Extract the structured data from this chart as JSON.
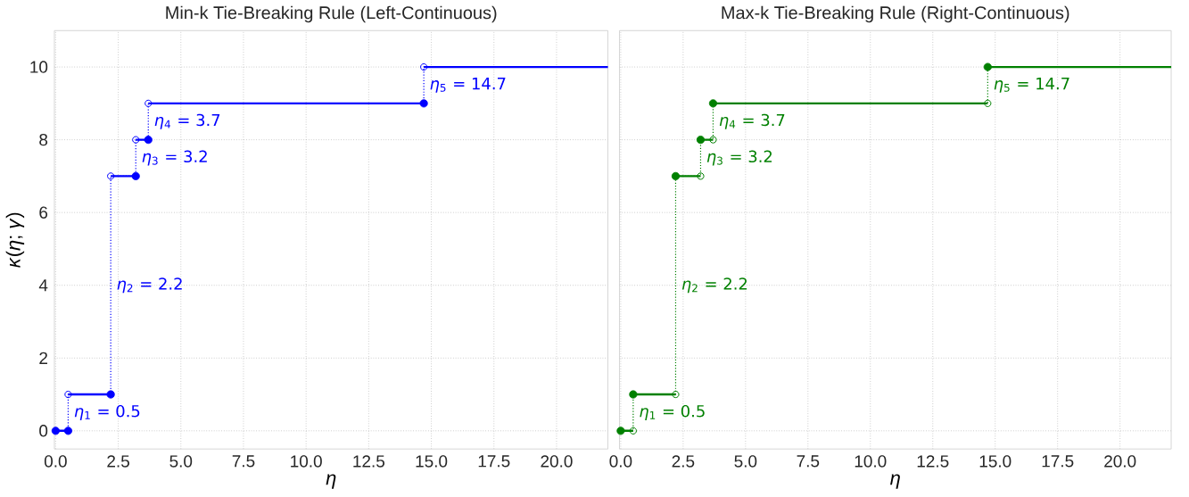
{
  "chart_data": [
    {
      "type": "step",
      "title": "Min-k Tie-Breaking Rule (Left-Continuous)",
      "xlabel": "*η*",
      "ylabel": "*κ*(*η*; *γ*)",
      "series": [
        {
          "type": "scatter",
          "marker": "circle",
          "color": "#0000ff",
          "x": [
            0,
            0.5,
            2.2,
            3.2,
            3.7,
            14.7
          ],
          "values": [
            0,
            0,
            1,
            7,
            8,
            9
          ]
        },
        {
          "color": "#0000ff",
          "line_style": "dotted",
          "x": [
            0,
            0.5,
            2.2,
            3.2,
            3.7,
            14.7,
            22.05
          ],
          "values": [
            0,
            1,
            7,
            8,
            9,
            10,
            10
          ]
        },
        {
          "type": "scatter",
          "marker": "circle-open",
          "color": "#0000ff",
          "x": [
            0.5,
            2.2,
            3.2,
            3.7,
            14.7
          ],
          "values": [
            1,
            7,
            8,
            9,
            10
          ]
        }
      ],
      "annotations": [
        {
          "text": "*η*$_{1}$ = 0.5",
          "x": 0.5,
          "y": 0.5
        },
        {
          "text": "*η*$_{2}$ = 2.2",
          "x": 2.2,
          "y": 4
        },
        {
          "text": "*η*$_{3}$ = 3.2",
          "x": 3.2,
          "y": 7.5
        },
        {
          "text": "*η*$_{4}$ = 3.7",
          "x": 3.7,
          "y": 8.5
        },
        {
          "text": "*η*$_{5}$ = 14.7",
          "x": 14.7,
          "y": 9.5
        }
      ],
      "xlim": [
        -0.05,
        22.05
      ],
      "ylim": [
        -0.5,
        11
      ],
      "xticks": [
        {
          "value": 0,
          "label": "0.0"
        },
        2.5,
        {
          "value": 5,
          "label": "5.0"
        },
        7.5,
        {
          "value": 10,
          "label": "10.0"
        },
        12.5,
        {
          "value": 15,
          "label": "15.0"
        },
        17.5,
        {
          "value": 20,
          "label": "20.0"
        }
      ],
      "yticks": [
        0,
        2,
        4,
        6,
        8,
        10
      ],
      "grid": true
    },
    {
      "type": "step",
      "title": "Max-k Tie-Breaking Rule (Right-Continuous)",
      "xlabel": "*η*",
      "series": [
        {
          "type": "scatter",
          "marker": "circle",
          "color": "#008000",
          "x": [
            0,
            0.5,
            2.2,
            3.2,
            3.7,
            14.7
          ],
          "values": [
            0,
            1,
            7,
            8,
            9,
            10
          ]
        },
        {
          "color": "#008000",
          "line_style": "dotted",
          "x": [
            0,
            0.5,
            2.2,
            3.2,
            3.7,
            14.7,
            22.05
          ],
          "values": [
            0,
            1,
            7,
            8,
            9,
            10,
            10
          ]
        },
        {
          "type": "scatter",
          "marker": "circle-open",
          "color": "#008000",
          "x": [
            0.5,
            2.2,
            3.2,
            3.7,
            14.7
          ],
          "values": [
            0,
            1,
            7,
            8,
            9
          ]
        }
      ],
      "annotations": [
        {
          "text": "*η*$_{1}$ = 0.5",
          "x": 0.5,
          "y": 0.5
        },
        {
          "text": "*η*$_{2}$ = 2.2",
          "x": 2.2,
          "y": 4
        },
        {
          "text": "*η*$_{3}$ = 3.2",
          "x": 3.2,
          "y": 7.5
        },
        {
          "text": "*η*$_{4}$ = 3.7",
          "x": 3.7,
          "y": 8.5
        },
        {
          "text": "*η*$_{5}$ = 14.7",
          "x": 14.7,
          "y": 9.5
        }
      ],
      "xlim": [
        -0.05,
        22.05
      ],
      "ylim": [
        -0.5,
        11
      ],
      "xticks": [
        {
          "value": 0,
          "label": "0.0"
        },
        2.5,
        {
          "value": 5,
          "label": "5.0"
        },
        7.5,
        {
          "value": 10,
          "label": "10.0"
        },
        12.5,
        {
          "value": 15,
          "label": "15.0"
        },
        17.5,
        {
          "value": 20,
          "label": "20.0"
        }
      ],
      "yticks": [
        0,
        2,
        4,
        6,
        8,
        10
      ],
      "grid": true,
      "tick_labels": "x"
    }
  ]
}
